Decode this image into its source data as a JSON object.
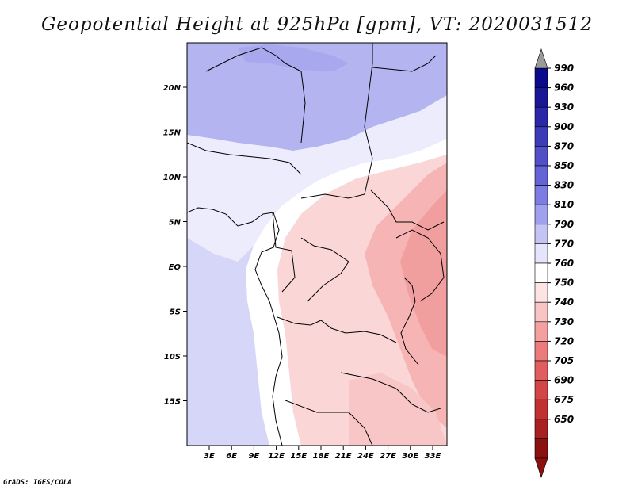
{
  "title": "Geopotential Height at 925hPa [gpm], VT: 2020031512",
  "credit": "GrADS: IGES/COLA",
  "map": {
    "lat_ticks": [
      "20N",
      "15N",
      "10N",
      "5N",
      "EQ",
      "5S",
      "10S",
      "15S"
    ],
    "lon_ticks": [
      "3E",
      "6E",
      "9E",
      "12E",
      "15E",
      "18E",
      "21E",
      "24E",
      "27E",
      "30E",
      "33E"
    ]
  },
  "colorbar": {
    "labels": [
      "990",
      "960",
      "930",
      "900",
      "870",
      "850",
      "830",
      "810",
      "790",
      "770",
      "760",
      "750",
      "740",
      "730",
      "720",
      "705",
      "690",
      "675",
      "650"
    ],
    "colors": [
      "#0a0a8c",
      "#181896",
      "#2828a8",
      "#3c3cb8",
      "#5050c8",
      "#6464d6",
      "#7c7ce2",
      "#a0a0ec",
      "#c4c4f4",
      "#e4e4fa",
      "#ffffff",
      "#fde4e4",
      "#f9c4c4",
      "#f4a0a0",
      "#ec7c7c",
      "#e25e5e",
      "#d44646",
      "#c23030",
      "#a82020",
      "#8c1010"
    ],
    "top_arrow_color": "#9a9a9a",
    "bottom_arrow_color": "#8c1010"
  },
  "palette": {
    "ocean": "#d6d6f8",
    "north_high": "#b4b4f0",
    "far_north": "#a8a8ee",
    "sahel": "#ececfc",
    "west_light": "#ffffff",
    "interior_low": "#fbd6d6",
    "east_low": "#f6b4b4",
    "rift_low": "#f19e9e",
    "south_low": "#f8c6c6"
  }
}
